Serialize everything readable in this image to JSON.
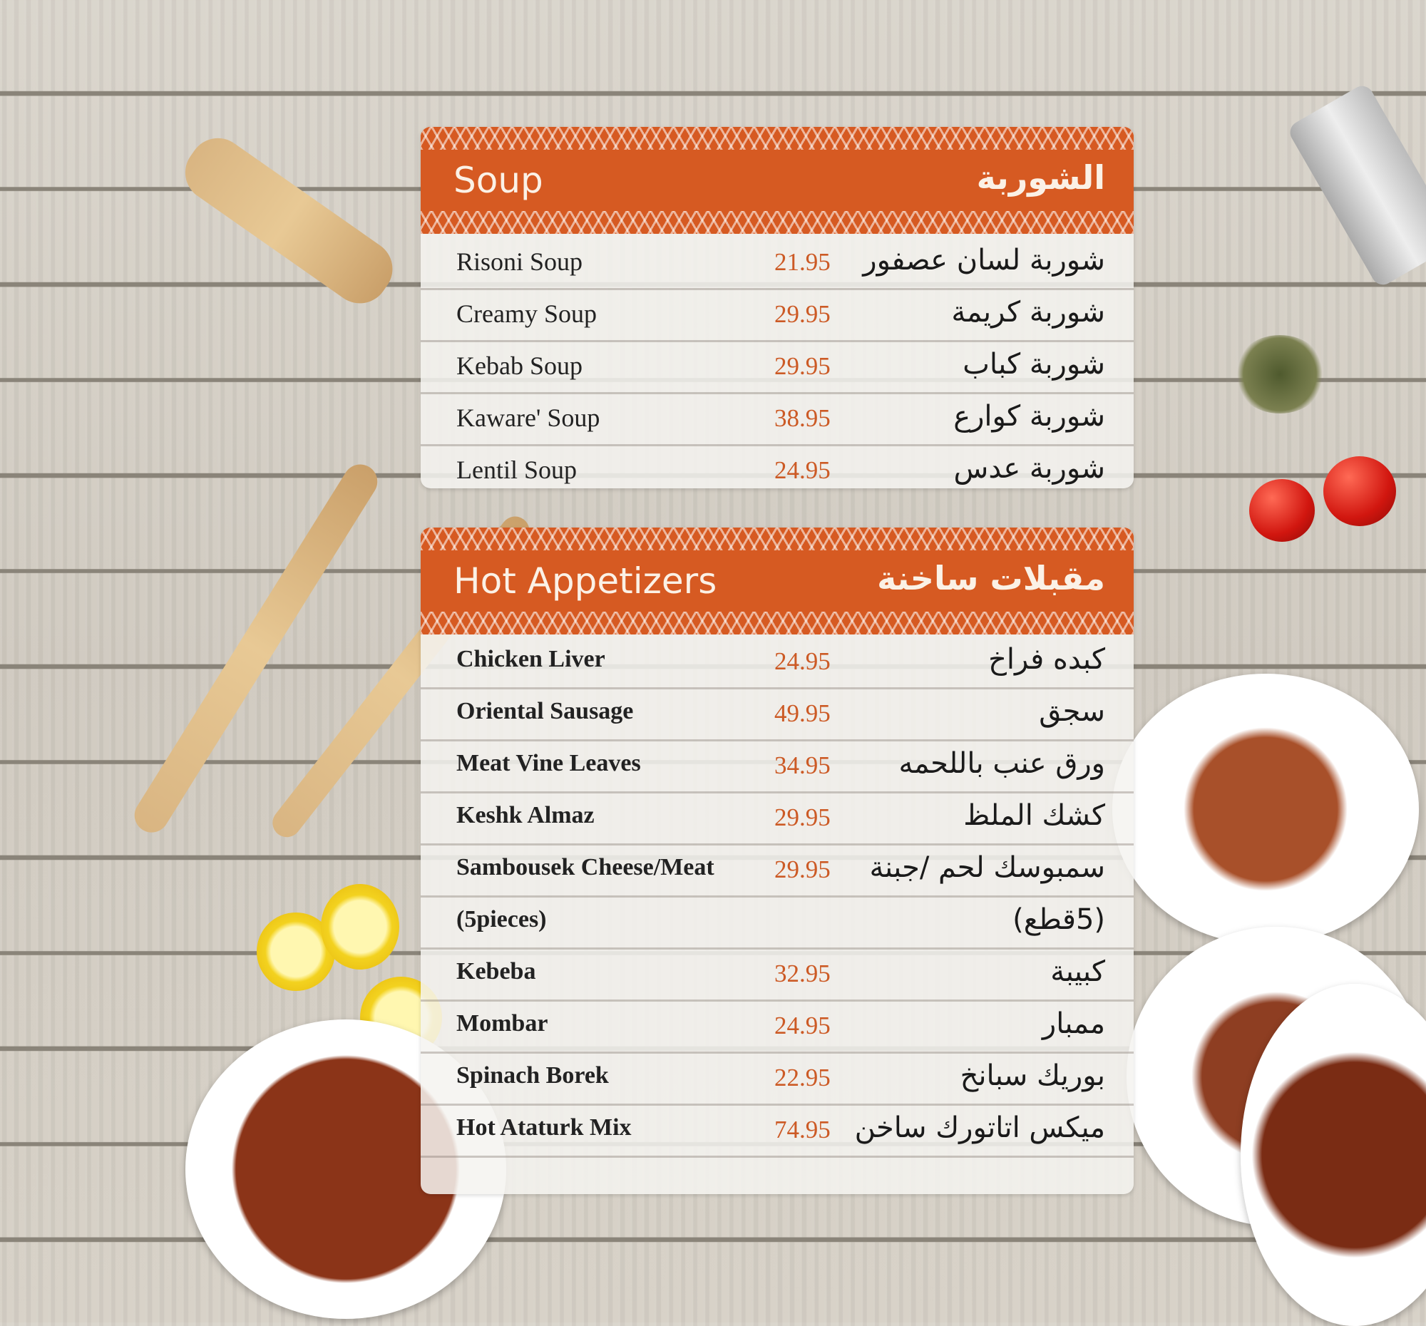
{
  "colors": {
    "accent": "#d65a22",
    "price": "#cc5a25"
  },
  "soup": {
    "title_en": "Soup",
    "title_ar": "الشوربة",
    "items": [
      {
        "name": "Risoni Soup",
        "price": "21.95",
        "ar": "شوربة لسان عصفور"
      },
      {
        "name": "Creamy Soup",
        "price": "29.95",
        "ar": "شوربة كريمة"
      },
      {
        "name": "Kebab Soup",
        "price": "29.95",
        "ar": "شوربة كباب"
      },
      {
        "name": "Kaware' Soup",
        "price": "38.95",
        "ar": "شوربة كوارع"
      },
      {
        "name": "Lentil Soup",
        "price": "24.95",
        "ar": "شوربة عدس"
      }
    ]
  },
  "hot": {
    "title_en": "Hot Appetizers",
    "title_ar": "مقبلات ساخنة",
    "items": [
      {
        "name": "Chicken Liver",
        "price": "24.95",
        "ar": "كبده فراخ"
      },
      {
        "name": "Oriental Sausage",
        "price": "49.95",
        "ar": "سجق"
      },
      {
        "name": "Meat Vine Leaves",
        "price": "34.95",
        "ar": "ورق عنب باللحمه"
      },
      {
        "name": "Keshk Almaz",
        "price": "29.95",
        "ar": "كشك الملظ"
      },
      {
        "name": "Sambousek Cheese/Meat",
        "price": "29.95",
        "ar": "سمبوسك لحم /جبنة"
      },
      {
        "name": "(5pieces)",
        "price": "",
        "ar": "(5قطع)"
      },
      {
        "name": "Kebeba",
        "price": "32.95",
        "ar": "كبيبة"
      },
      {
        "name": "Mombar",
        "price": "24.95",
        "ar": "ممبار"
      },
      {
        "name": "Spinach Borek",
        "price": "22.95",
        "ar": "بوريك سبانخ"
      },
      {
        "name": "Hot Ataturk Mix",
        "price": "74.95",
        "ar": "ميكس اتاتورك ساخن"
      }
    ]
  }
}
